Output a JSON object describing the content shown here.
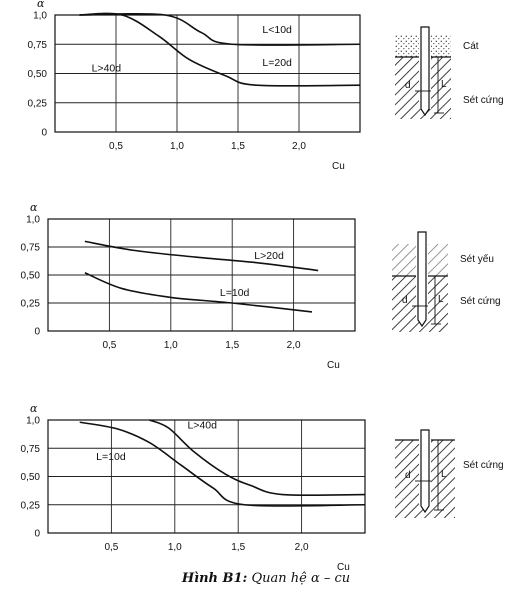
{
  "caption": {
    "bold": "Hình B1:",
    "text": "Quan hệ α – cu"
  },
  "chart_data": [
    {
      "type": "line",
      "ylabel": "α",
      "xlabel": "Cu",
      "xlim": [
        0,
        2.5
      ],
      "ylim": [
        0,
        1.0
      ],
      "x_ticks": [
        "0,5",
        "1,0",
        "1,5",
        "2,0"
      ],
      "x_tick_values": [
        0.5,
        1.0,
        1.5,
        2.0
      ],
      "y_ticks": [
        "1,0",
        "0,75",
        "0,50",
        "0,25",
        "0"
      ],
      "y_tick_values": [
        1.0,
        0.75,
        0.5,
        0.25,
        0
      ],
      "grid": true,
      "series": [
        {
          "name": "L<10d",
          "x": [
            0.2,
            0.9,
            1.2,
            1.45,
            2.5
          ],
          "y": [
            1.0,
            1.0,
            0.85,
            0.75,
            0.75
          ]
        },
        {
          "name": "L>40d",
          "x": [
            0.2,
            0.55,
            0.85,
            1.1,
            1.4,
            1.65,
            2.5
          ],
          "y": [
            1.0,
            1.0,
            0.82,
            0.62,
            0.48,
            0.4,
            0.4
          ]
        }
      ],
      "labels": [
        {
          "text": "L<10d",
          "x": 1.7,
          "y": 0.88
        },
        {
          "text": "L=20d",
          "x": 1.7,
          "y": 0.6
        },
        {
          "text": "L>40d",
          "x": 0.3,
          "y": 0.55
        }
      ],
      "diagram": {
        "top_soil": "Cát",
        "bottom_soil": "Sét cứng",
        "d_label": "d",
        "l_label": "L"
      }
    },
    {
      "type": "line",
      "ylabel": "α",
      "xlabel": "Cu",
      "xlim": [
        0,
        2.5
      ],
      "ylim": [
        0,
        1.0
      ],
      "x_ticks": [
        "0,5",
        "1,0",
        "1,5",
        "2,0"
      ],
      "x_tick_values": [
        0.5,
        1.0,
        1.5,
        2.0
      ],
      "y_ticks": [
        "1,0",
        "0,75",
        "0,50",
        "0,25",
        "0"
      ],
      "y_tick_values": [
        1.0,
        0.75,
        0.5,
        0.25,
        0
      ],
      "grid": true,
      "series": [
        {
          "name": "L>20d",
          "x": [
            0.3,
            0.7,
            1.2,
            1.7,
            2.2
          ],
          "y": [
            0.8,
            0.72,
            0.66,
            0.61,
            0.54
          ]
        },
        {
          "name": "L=10d",
          "x": [
            0.3,
            0.6,
            1.0,
            1.5,
            2.15
          ],
          "y": [
            0.52,
            0.38,
            0.3,
            0.25,
            0.17
          ]
        }
      ],
      "labels": [
        {
          "text": "L>20d",
          "x": 1.68,
          "y": 0.68
        },
        {
          "text": "L=10d",
          "x": 1.4,
          "y": 0.35
        }
      ],
      "diagram": {
        "top_soil": "Sét yếu",
        "bottom_soil": "Sét cứng",
        "d_label": "d",
        "l_label": "L"
      }
    },
    {
      "type": "line",
      "ylabel": "α",
      "xlabel": "Cu",
      "xlim": [
        0,
        2.5
      ],
      "ylim": [
        0,
        1.0
      ],
      "x_ticks": [
        "0,5",
        "1,0",
        "1,5",
        "2,0"
      ],
      "x_tick_values": [
        0.5,
        1.0,
        1.5,
        2.0
      ],
      "y_ticks": [
        "1,0",
        "0,75",
        "0,50",
        "0,25",
        "0"
      ],
      "y_tick_values": [
        1.0,
        0.75,
        0.5,
        0.25,
        0
      ],
      "grid": true,
      "series": [
        {
          "name": "L>40d",
          "x": [
            0.8,
            0.95,
            1.15,
            1.4,
            1.6,
            1.85,
            2.5
          ],
          "y": [
            1.0,
            0.93,
            0.72,
            0.52,
            0.42,
            0.34,
            0.34
          ]
        },
        {
          "name": "L=10d",
          "x": [
            0.25,
            0.55,
            0.8,
            1.05,
            1.3,
            1.55,
            2.5
          ],
          "y": [
            0.98,
            0.92,
            0.8,
            0.6,
            0.4,
            0.25,
            0.25
          ]
        }
      ],
      "labels": [
        {
          "text": "L>40d",
          "x": 1.1,
          "y": 0.96
        },
        {
          "text": "L=10d",
          "x": 0.38,
          "y": 0.68
        }
      ],
      "diagram": {
        "top_soil": "",
        "bottom_soil": "Sét cứng",
        "d_label": "d",
        "l_label": "L"
      }
    }
  ]
}
